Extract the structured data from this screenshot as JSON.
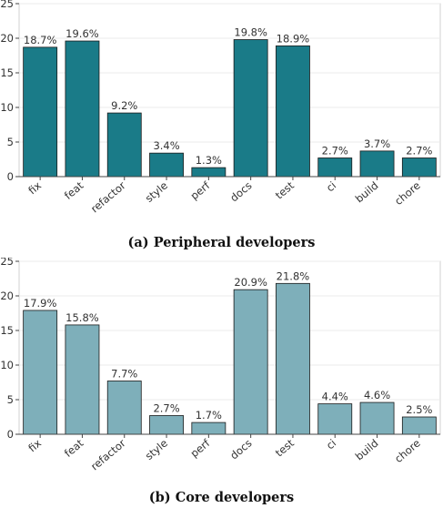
{
  "chart_data": [
    {
      "type": "bar",
      "caption": "(a) Peripheral developers",
      "categories": [
        "fix",
        "feat",
        "refactor",
        "style",
        "perf",
        "docs",
        "test",
        "ci",
        "build",
        "chore"
      ],
      "values": [
        18.7,
        19.6,
        9.2,
        3.4,
        1.3,
        19.8,
        18.9,
        2.7,
        3.7,
        2.7
      ],
      "labels": [
        "18.7%",
        "19.6%",
        "9.2%",
        "3.4%",
        "1.3%",
        "19.8%",
        "18.9%",
        "2.7%",
        "3.7%",
        "2.7%"
      ],
      "ylim": [
        0,
        25
      ],
      "yticks": [
        0,
        5,
        10,
        15,
        20,
        25
      ],
      "grid": true,
      "color": "#1a7b88"
    },
    {
      "type": "bar",
      "caption": "(b) Core developers",
      "categories": [
        "fix",
        "feat",
        "refactor",
        "style",
        "perf",
        "docs",
        "test",
        "ci",
        "build",
        "chore"
      ],
      "values": [
        17.9,
        15.8,
        7.7,
        2.7,
        1.7,
        20.9,
        21.8,
        4.4,
        4.6,
        2.5
      ],
      "labels": [
        "17.9%",
        "15.8%",
        "7.7%",
        "2.7%",
        "1.7%",
        "20.9%",
        "21.8%",
        "4.4%",
        "4.6%",
        "2.5%"
      ],
      "ylim": [
        0,
        25
      ],
      "yticks": [
        0,
        5,
        10,
        15,
        20,
        25
      ],
      "grid": true,
      "color": "#7eafba"
    }
  ]
}
